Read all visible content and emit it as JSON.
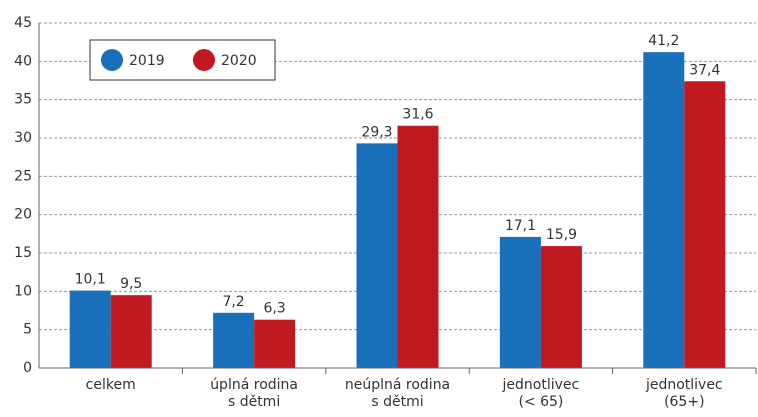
{
  "chart_data": {
    "type": "bar",
    "categories": [
      [
        "celkem"
      ],
      [
        "úplná rodina",
        "s dětmi"
      ],
      [
        "neúplná rodina",
        "s dětmi"
      ],
      [
        "jednotlivec",
        "(< 65)"
      ],
      [
        "jednotlivec",
        "(65+)"
      ]
    ],
    "series": [
      {
        "name": "2019",
        "color": "#1a6fba",
        "values": [
          10.1,
          7.2,
          29.3,
          17.1,
          41.2
        ],
        "value_labels": [
          "10,1",
          "7,2",
          "29,3",
          "17,1",
          "41,2"
        ]
      },
      {
        "name": "2020",
        "color": "#c0191f",
        "values": [
          9.5,
          6.3,
          31.6,
          15.9,
          37.4
        ],
        "value_labels": [
          "9,5",
          "6,3",
          "31,6",
          "15,9",
          "37,4"
        ]
      }
    ],
    "ylim": [
      0,
      45
    ],
    "yticks": [
      0,
      5,
      10,
      15,
      20,
      25,
      30,
      35,
      40,
      45
    ],
    "grid": true,
    "legend": "upper left"
  }
}
